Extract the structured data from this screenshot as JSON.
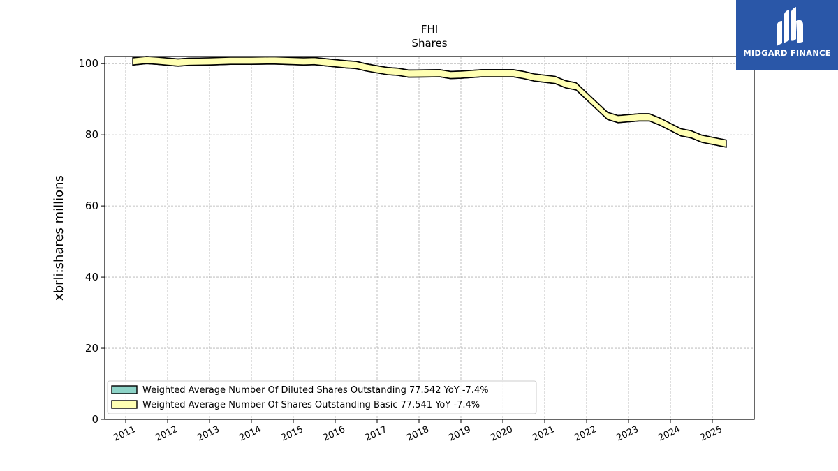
{
  "chart_data": {
    "type": "area",
    "title": "FHI",
    "subtitle": "Shares",
    "ylabel": "xbrli:shares millions",
    "xlabel": "",
    "ylim": [
      0,
      102
    ],
    "yticks": [
      0,
      20,
      40,
      60,
      80,
      100
    ],
    "xticks": [
      "2011",
      "2012",
      "2013",
      "2014",
      "2015",
      "2016",
      "2017",
      "2018",
      "2019",
      "2020",
      "2021",
      "2022",
      "2023",
      "2024",
      "2025"
    ],
    "grid": true,
    "legend_position": "lower-left",
    "series": [
      {
        "name": "Weighted Average Number Of Diluted Shares Outstanding  77.542 YoY -7.4%",
        "color": "#8dd3c7",
        "x": [
          2011.17,
          2011.5,
          2011.75,
          2012.25,
          2012.5,
          2013.0,
          2013.5,
          2014.0,
          2014.5,
          2015.0,
          2015.25,
          2015.5,
          2015.75,
          2016.25,
          2016.5,
          2016.75,
          2017.0,
          2017.25,
          2017.5,
          2017.75,
          2018.5,
          2018.75,
          2019.0,
          2019.25,
          2019.5,
          2020.25,
          2020.5,
          2020.75,
          2021.25,
          2021.5,
          2021.75,
          2022.5,
          2022.75,
          2023.25,
          2023.5,
          2023.75,
          2024.25,
          2024.5,
          2024.75,
          2025.33
        ],
        "values": [
          100.6,
          101.0,
          100.8,
          100.3,
          100.5,
          100.6,
          100.8,
          100.8,
          100.9,
          100.7,
          100.6,
          100.7,
          100.4,
          99.8,
          99.6,
          98.9,
          98.4,
          97.9,
          97.7,
          97.2,
          97.3,
          96.8,
          96.9,
          97.1,
          97.3,
          97.3,
          96.8,
          96.1,
          95.4,
          94.2,
          93.6,
          85.3,
          84.4,
          84.9,
          84.9,
          83.7,
          80.7,
          80.1,
          78.9,
          77.542
        ]
      },
      {
        "name": "Weighted Average Number Of Shares Outstanding Basic  77.541 YoY -7.4%",
        "color": "#ffffb3",
        "x": [
          2011.17,
          2011.5,
          2011.75,
          2012.25,
          2012.5,
          2013.0,
          2013.5,
          2014.0,
          2014.5,
          2015.0,
          2015.25,
          2015.5,
          2015.75,
          2016.25,
          2016.5,
          2016.75,
          2017.0,
          2017.25,
          2017.5,
          2017.75,
          2018.5,
          2018.75,
          2019.0,
          2019.25,
          2019.5,
          2020.25,
          2020.5,
          2020.75,
          2021.25,
          2021.5,
          2021.75,
          2022.5,
          2022.75,
          2023.25,
          2023.5,
          2023.75,
          2024.25,
          2024.5,
          2024.75,
          2025.33
        ],
        "values": [
          100.6,
          101.0,
          100.8,
          100.3,
          100.5,
          100.6,
          100.8,
          100.8,
          100.9,
          100.7,
          100.6,
          100.7,
          100.4,
          99.8,
          99.6,
          98.9,
          98.4,
          97.9,
          97.7,
          97.2,
          97.3,
          96.8,
          96.9,
          97.1,
          97.3,
          97.3,
          96.8,
          96.1,
          95.4,
          94.2,
          93.6,
          85.3,
          84.4,
          84.9,
          84.9,
          83.7,
          80.7,
          80.1,
          78.9,
          77.541
        ]
      }
    ]
  },
  "logo": {
    "text": "MIDGARD FINANCE",
    "background": "#2a57a8"
  }
}
